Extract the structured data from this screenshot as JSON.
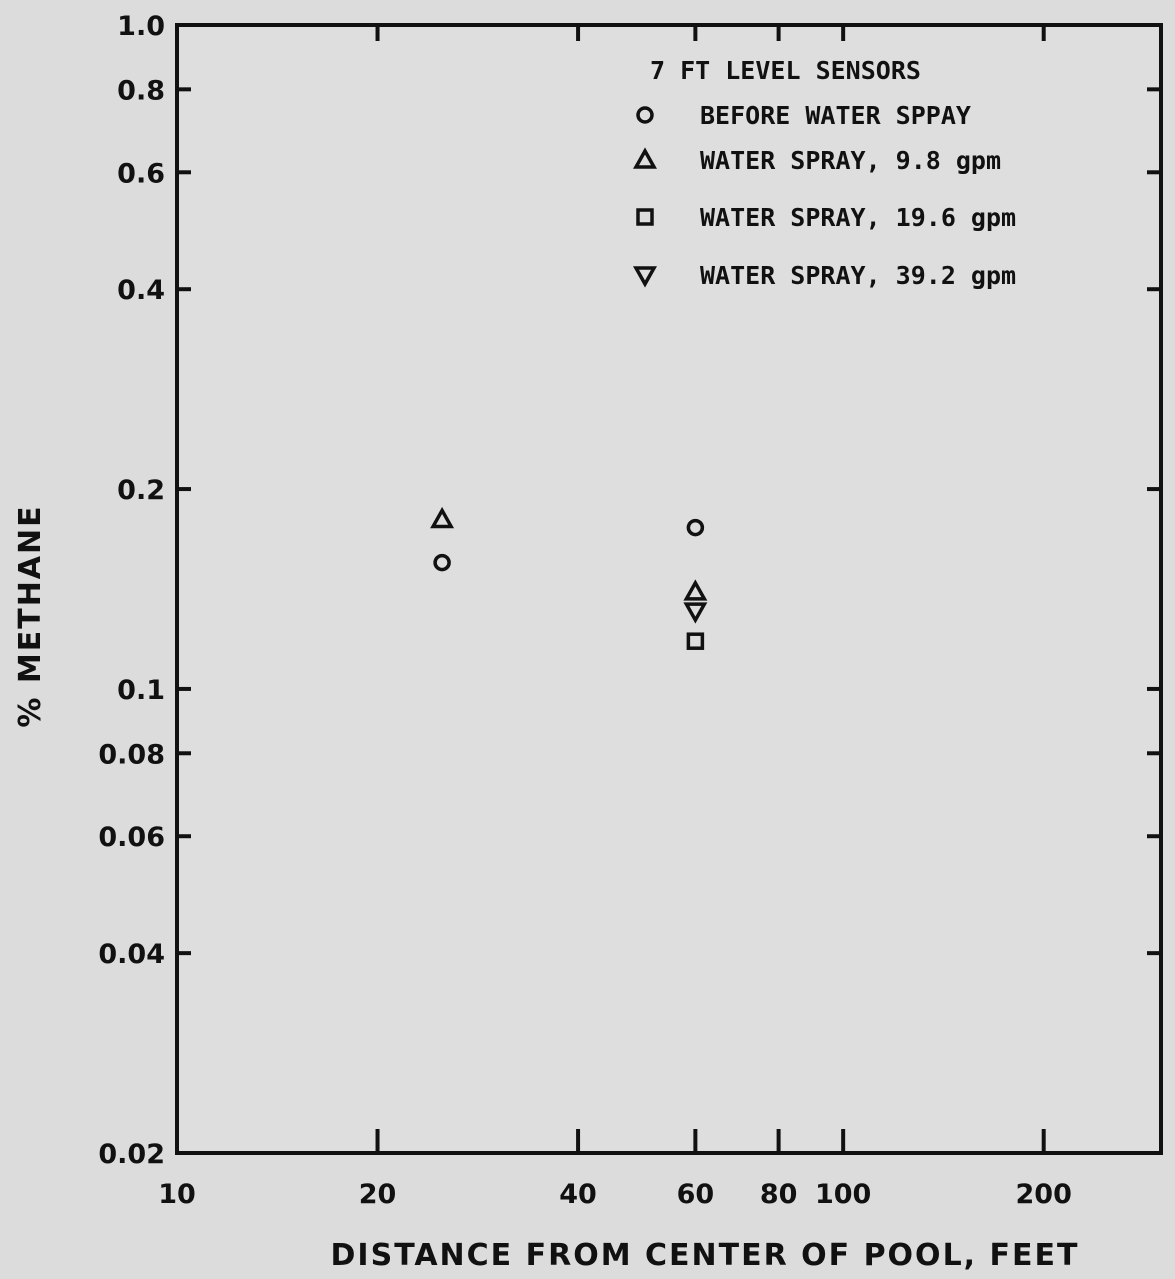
{
  "chart_data": {
    "type": "scatter",
    "x_scale": "log",
    "y_scale": "log",
    "xlim": [
      10,
      300
    ],
    "ylim": [
      0.02,
      1.0
    ],
    "xlabel": "DISTANCE FROM CENTER OF POOL, FEET",
    "ylabel": "% METHANE",
    "x_ticks": [
      {
        "value": 10,
        "label": "10"
      },
      {
        "value": 20,
        "label": "20"
      },
      {
        "value": 40,
        "label": "40"
      },
      {
        "value": 60,
        "label": "60"
      },
      {
        "value": 80,
        "label": "80"
      },
      {
        "value": 100,
        "label": "100"
      },
      {
        "value": 200,
        "label": "200"
      }
    ],
    "y_ticks": [
      {
        "value": 1.0,
        "label": "1.0"
      },
      {
        "value": 0.8,
        "label": "0.8"
      },
      {
        "value": 0.6,
        "label": "0.6"
      },
      {
        "value": 0.4,
        "label": "0.4"
      },
      {
        "value": 0.2,
        "label": "0.2"
      },
      {
        "value": 0.1,
        "label": "0.1"
      },
      {
        "value": 0.08,
        "label": "0.08"
      },
      {
        "value": 0.06,
        "label": "0.06"
      },
      {
        "value": 0.04,
        "label": "0.04"
      },
      {
        "value": 0.02,
        "label": "0.02"
      }
    ],
    "legend": {
      "title": "7 FT LEVEL SENSORS",
      "placement": "top-right"
    },
    "grid": false,
    "series": [
      {
        "name": "BEFORE WATER SPPAY",
        "marker": "circle",
        "points": [
          {
            "x": 25,
            "y": 0.155
          },
          {
            "x": 60,
            "y": 0.175
          }
        ]
      },
      {
        "name": "WATER SPRAY, 9.8 gpm",
        "marker": "triangle-up",
        "points": [
          {
            "x": 25,
            "y": 0.18
          },
          {
            "x": 60,
            "y": 0.14
          }
        ]
      },
      {
        "name": "WATER SPRAY, 19.6 gpm",
        "marker": "square",
        "points": [
          {
            "x": 60,
            "y": 0.118
          }
        ]
      },
      {
        "name": "WATER SPRAY, 39.2 gpm",
        "marker": "triangle-down",
        "points": [
          {
            "x": 60,
            "y": 0.131
          }
        ]
      }
    ]
  }
}
